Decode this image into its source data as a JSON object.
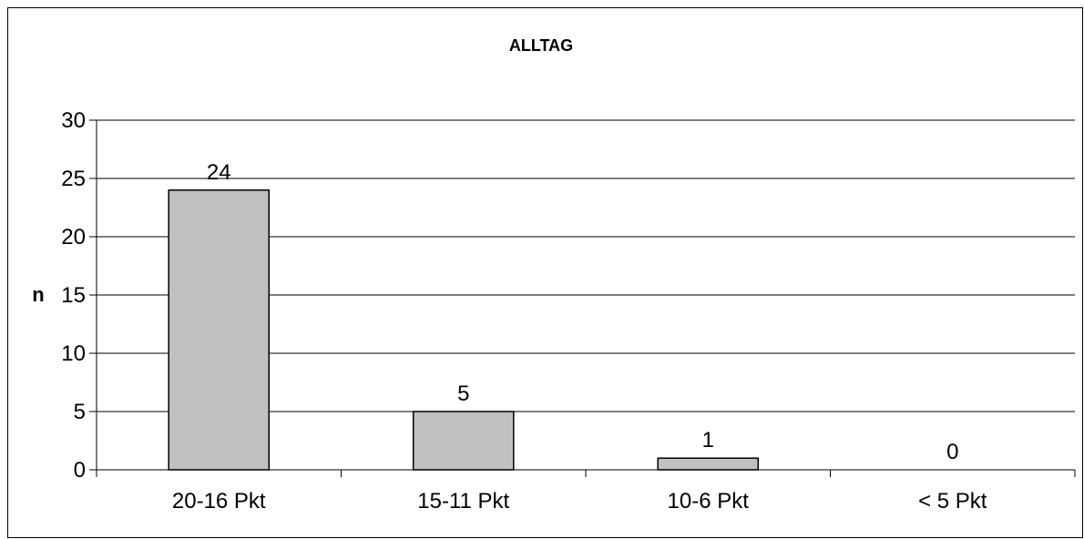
{
  "chart_data": {
    "type": "bar",
    "title": "ALLTAG",
    "xlabel": "",
    "ylabel": "n",
    "categories": [
      "20-16 Pkt",
      "15-11 Pkt",
      "10-6 Pkt",
      "< 5 Pkt"
    ],
    "values": [
      24,
      5,
      1,
      0
    ],
    "data_labels": [
      "24",
      "5",
      "1",
      "0"
    ],
    "ylim": [
      0,
      30
    ],
    "yticks": [
      0,
      5,
      10,
      15,
      20,
      25,
      30
    ],
    "grid": true,
    "legend": "none",
    "colors": {
      "bar_fill": "#c0c0c0",
      "bar_stroke": "#000000",
      "grid": "#000000",
      "axis": "#000000"
    }
  }
}
